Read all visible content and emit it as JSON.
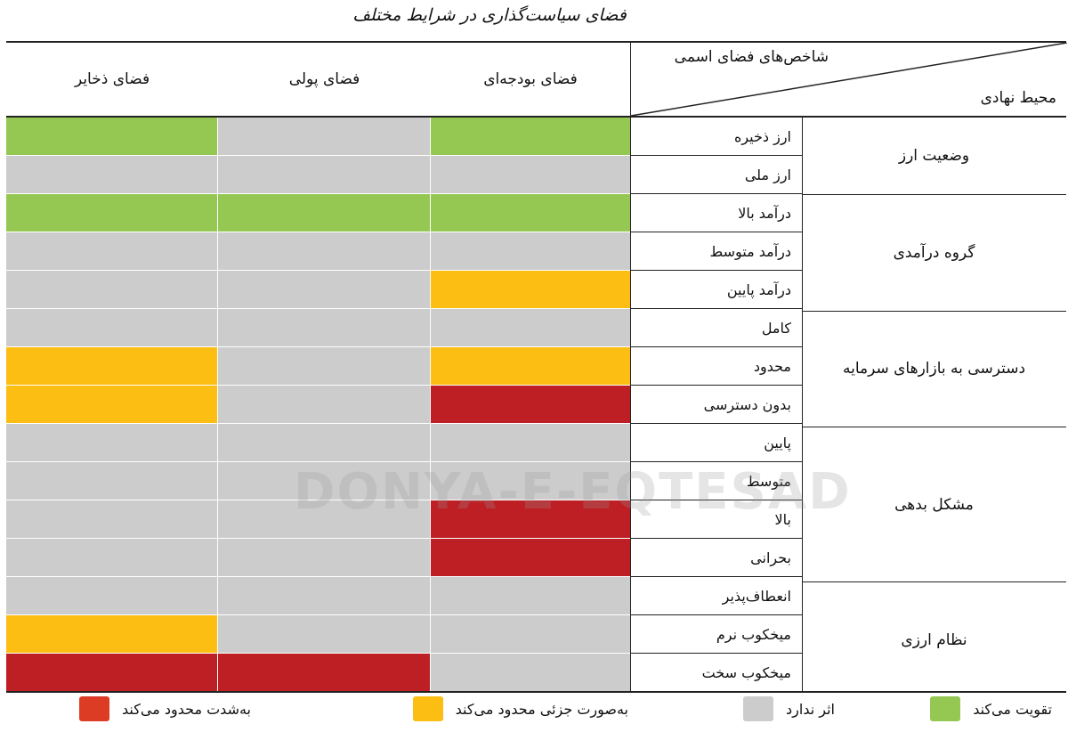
{
  "title": "فضای سیاست‌گذاری در شرایط مختلف",
  "header": {
    "diag_top": "شاخص‌های فضای اسمی",
    "diag_bottom": "محیط نهادی",
    "columns": [
      "فضای ذخایر",
      "فضای پولی",
      "فضای بودجه‌ای"
    ]
  },
  "colors": {
    "strengthens": "#95c852",
    "no_effect": "#cccccc",
    "partially_limits": "#fcbe12",
    "severely_limits": "#be1f25",
    "legend_severe": "#dc3c24"
  },
  "categories": [
    {
      "label": "وضعیت ارز",
      "span": 2
    },
    {
      "label": "گروه درآمدی",
      "span": 3
    },
    {
      "label": "دسترسی به بازارهای سرمایه",
      "span": 3
    },
    {
      "label": "مشکل بدهی",
      "span": 4
    },
    {
      "label": "نظام ارزی",
      "span": 3
    }
  ],
  "rows": [
    {
      "indicator": "ارز ذخیره",
      "values": [
        "strengthens",
        "no_effect",
        "strengthens"
      ]
    },
    {
      "indicator": "ارز ملی",
      "values": [
        "no_effect",
        "no_effect",
        "no_effect"
      ]
    },
    {
      "indicator": "درآمد بالا",
      "values": [
        "strengthens",
        "strengthens",
        "strengthens"
      ]
    },
    {
      "indicator": "درآمد متوسط",
      "values": [
        "no_effect",
        "no_effect",
        "no_effect"
      ]
    },
    {
      "indicator": "درآمد پایین",
      "values": [
        "no_effect",
        "no_effect",
        "partially_limits"
      ]
    },
    {
      "indicator": "کامل",
      "values": [
        "no_effect",
        "no_effect",
        "no_effect"
      ]
    },
    {
      "indicator": "محدود",
      "values": [
        "partially_limits",
        "no_effect",
        "partially_limits"
      ]
    },
    {
      "indicator": "بدون دسترسی",
      "values": [
        "partially_limits",
        "no_effect",
        "severely_limits"
      ]
    },
    {
      "indicator": "پایین",
      "values": [
        "no_effect",
        "no_effect",
        "no_effect"
      ]
    },
    {
      "indicator": "متوسط",
      "values": [
        "no_effect",
        "no_effect",
        "no_effect"
      ]
    },
    {
      "indicator": "بالا",
      "values": [
        "no_effect",
        "no_effect",
        "severely_limits"
      ]
    },
    {
      "indicator": "بحرانی",
      "values": [
        "no_effect",
        "no_effect",
        "severely_limits"
      ]
    },
    {
      "indicator": "انعطاف‌پذیر",
      "values": [
        "no_effect",
        "no_effect",
        "no_effect"
      ]
    },
    {
      "indicator": "میخکوب نرم",
      "values": [
        "partially_limits",
        "no_effect",
        "no_effect"
      ]
    },
    {
      "indicator": "میخکوب سخت",
      "values": [
        "severely_limits",
        "severely_limits",
        "no_effect"
      ]
    }
  ],
  "legend": [
    {
      "key": "strengthens",
      "label": "تقویت می‌کند"
    },
    {
      "key": "no_effect",
      "label": "اثر ندارد"
    },
    {
      "key": "partially_limits",
      "label": "به‌صورت جزئی محدود می‌کند"
    },
    {
      "key": "severely_limits",
      "label": "به‌شدت محدود می‌کند"
    }
  ],
  "watermark": "DONYA-E-EQTESAD",
  "chart_data": {
    "type": "heatmap",
    "title": "فضای سیاست‌گذاری در شرایط مختلف",
    "x": [
      "فضای بودجه‌ای",
      "فضای پولی",
      "فضای ذخایر"
    ],
    "y": [
      "ارز ذخیره",
      "ارز ملی",
      "درآمد بالا",
      "درآمد متوسط",
      "درآمد پایین",
      "کامل",
      "محدود",
      "بدون دسترسی",
      "پایین",
      "متوسط",
      "بالا",
      "بحرانی",
      "انعطاف‌پذیر",
      "میخکوب نرم",
      "میخکوب سخت"
    ],
    "y_groups": [
      {
        "label": "وضعیت ارز",
        "rows": [
          "ارز ذخیره",
          "ارز ملی"
        ]
      },
      {
        "label": "گروه درآمدی",
        "rows": [
          "درآمد بالا",
          "درآمد متوسط",
          "درآمد پایین"
        ]
      },
      {
        "label": "دسترسی به بازارهای سرمایه",
        "rows": [
          "کامل",
          "محدود",
          "بدون دسترسی"
        ]
      },
      {
        "label": "مشکل بدهی",
        "rows": [
          "پایین",
          "متوسط",
          "بالا",
          "بحرانی"
        ]
      },
      {
        "label": "نظام ارزی",
        "rows": [
          "انعطاف‌پذیر",
          "میخکوب نرم",
          "میخکوب سخت"
        ]
      }
    ],
    "scale": {
      "1": "تقویت می‌کند",
      "0": "اثر ندارد",
      "-1": "به‌صورت جزئی محدود می‌کند",
      "-2": "به‌شدت محدود می‌کند"
    },
    "values": [
      [
        1,
        0,
        1
      ],
      [
        0,
        0,
        0
      ],
      [
        1,
        1,
        1
      ],
      [
        0,
        0,
        0
      ],
      [
        -1,
        0,
        0
      ],
      [
        0,
        0,
        0
      ],
      [
        -1,
        0,
        -1
      ],
      [
        -2,
        0,
        -1
      ],
      [
        0,
        0,
        0
      ],
      [
        0,
        0,
        0
      ],
      [
        -2,
        0,
        0
      ],
      [
        -2,
        0,
        0
      ],
      [
        0,
        0,
        0
      ],
      [
        0,
        0,
        -1
      ],
      [
        0,
        -2,
        -2
      ]
    ],
    "xlabel": "شاخص‌های فضای اسمی",
    "ylabel": "محیط نهادی",
    "legend_position": "bottom"
  }
}
